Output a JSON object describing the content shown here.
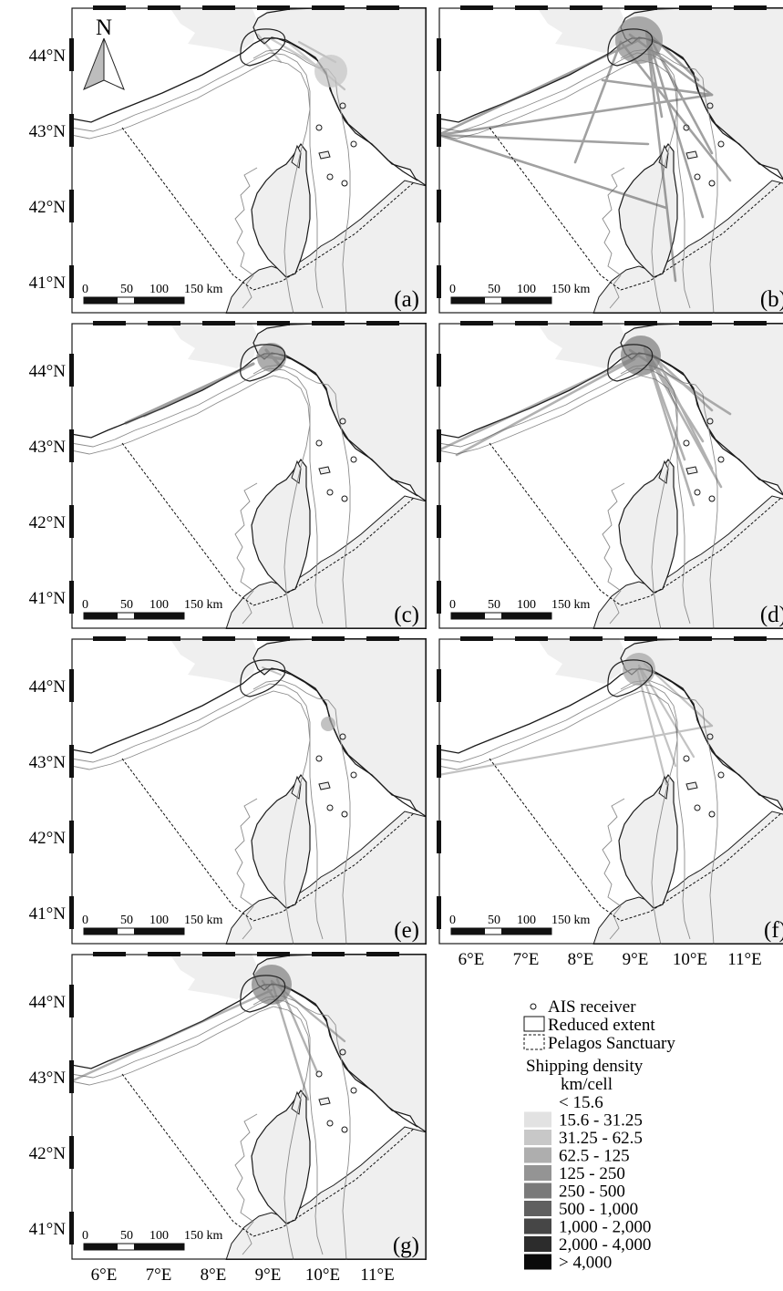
{
  "north_arrow": {
    "label": "N"
  },
  "lat_labels": [
    "44°N",
    "43°N",
    "42°N",
    "41°N"
  ],
  "lon_labels": [
    "6°E",
    "7°E",
    "8°E",
    "9°E",
    "10°E",
    "11°E"
  ],
  "scale_bar": {
    "ticks": [
      "0",
      "50",
      "100",
      "150 km"
    ]
  },
  "panels": [
    {
      "id": "a",
      "label": "(a)",
      "traffic": "light",
      "show_lat": true
    },
    {
      "id": "b",
      "label": "(b)",
      "traffic": "heavy",
      "show_lat": false
    },
    {
      "id": "c",
      "label": "(c)",
      "traffic": "coastal",
      "show_lat": true
    },
    {
      "id": "d",
      "label": "(d)",
      "traffic": "medium",
      "show_lat": false
    },
    {
      "id": "e",
      "label": "(e)",
      "traffic": "minimal",
      "show_lat": true
    },
    {
      "id": "f",
      "label": "(f)",
      "traffic": "light2",
      "show_lat": false
    },
    {
      "id": "g",
      "label": "(g)",
      "traffic": "medium2",
      "show_lat": true
    }
  ],
  "legend": {
    "ais_receiver": "AIS receiver",
    "reduced_extent": "Reduced extent",
    "pelagos_sanctuary": "Pelagos Sanctuary",
    "density_title": "Shipping density",
    "density_unit": "km/cell",
    "classes": [
      {
        "label": "< 15.6",
        "color": "#ffffff"
      },
      {
        "label": "15.6 - 31.25",
        "color": "#e2e2e2"
      },
      {
        "label": "31.25 - 62.5",
        "color": "#c8c8c8"
      },
      {
        "label": "62.5 - 125",
        "color": "#aeaeae"
      },
      {
        "label": "125 - 250",
        "color": "#949494"
      },
      {
        "label": "250 - 500",
        "color": "#7a7a7a"
      },
      {
        "label": "500 - 1,000",
        "color": "#606060"
      },
      {
        "label": "1,000 - 2,000",
        "color": "#464646"
      },
      {
        "label": "2,000 - 4,000",
        "color": "#2c2c2c"
      },
      {
        "label": "> 4,000",
        "color": "#0a0a0a"
      }
    ]
  }
}
